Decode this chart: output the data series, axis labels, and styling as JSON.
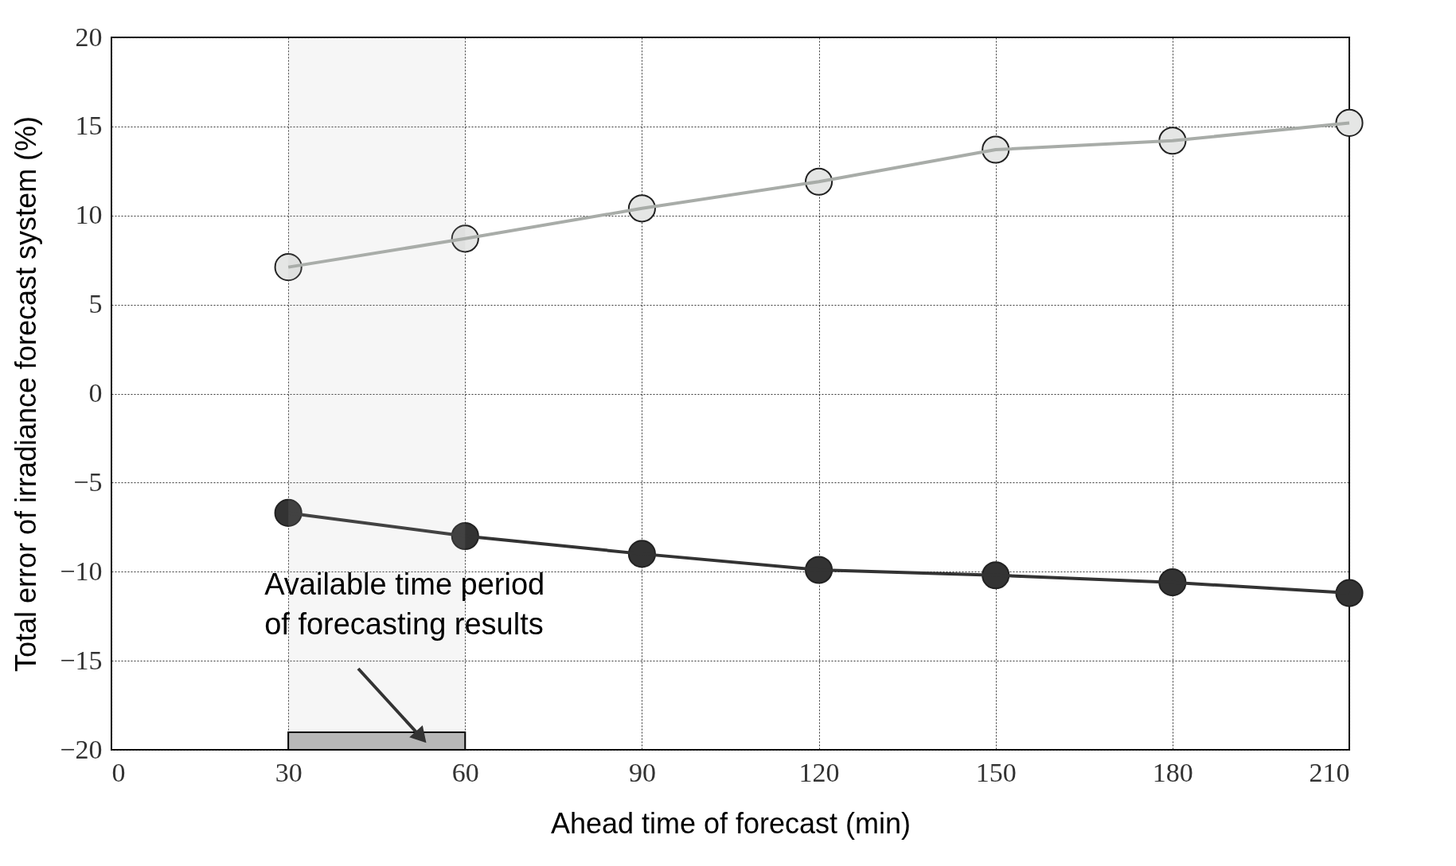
{
  "chart_data": {
    "type": "line",
    "xlabel": "Ahead time of forecast (min)",
    "ylabel": "Total error of irradiance forecast system (%)",
    "x": [
      30,
      60,
      90,
      120,
      150,
      180,
      210
    ],
    "series": [
      {
        "color": "#a8aca8",
        "values": [
          7.1,
          8.7,
          10.4,
          11.9,
          13.7,
          14.2,
          15.2
        ]
      },
      {
        "color": "#333333",
        "values": [
          -6.7,
          -8.0,
          -9.0,
          -9.9,
          -10.2,
          -10.6,
          -11.2
        ]
      }
    ],
    "xlim": [
      0,
      210
    ],
    "xticks": [
      0,
      30,
      60,
      90,
      120,
      150,
      180,
      210
    ],
    "ylim": [
      -20,
      20
    ],
    "yticks": [
      -20,
      -15,
      -10,
      -5,
      0,
      5,
      10,
      15,
      20
    ],
    "grid": true,
    "marker": "circle",
    "line_style": "solid",
    "bands": [
      {
        "axis": "x",
        "from": 30,
        "to": 60,
        "label": "Available time period\nof forecasting results",
        "color": "#b8b8b8"
      }
    ]
  }
}
